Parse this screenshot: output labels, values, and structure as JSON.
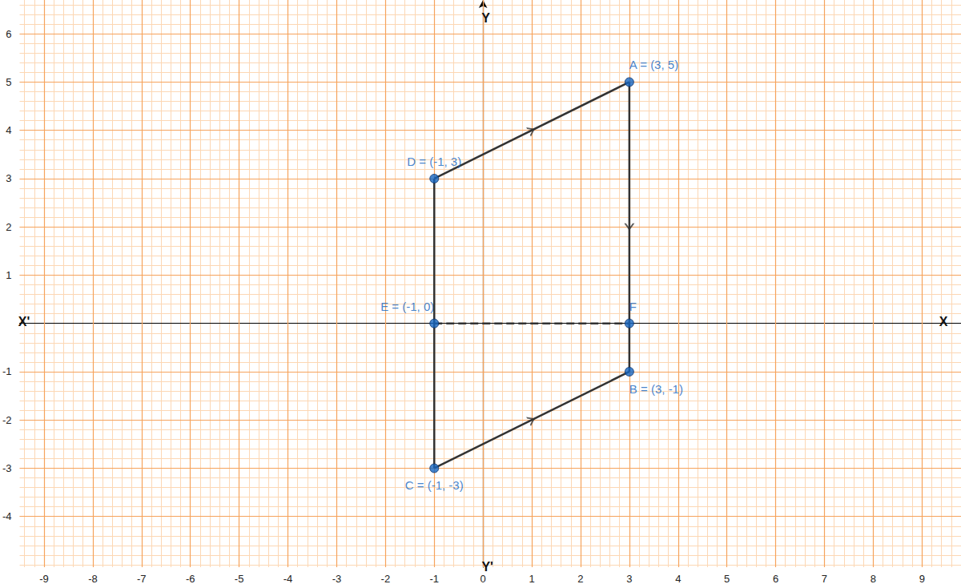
{
  "chart_data": {
    "type": "scatter",
    "x": [
      3,
      3,
      -1,
      -1,
      -1,
      3
    ],
    "values": [
      5,
      -1,
      -3,
      3,
      0,
      0
    ],
    "labels": [
      "A = (3, 5)",
      "B = (3, -1)",
      "C = (-1, -3)",
      "D = (-1, 3)",
      "E = (-1, 0)",
      "F"
    ],
    "color": "#1565c0",
    "segments": [
      {
        "x": [
          -1,
          3
        ],
        "values": [
          3,
          5
        ],
        "line_style": "solid",
        "marker": "arrow",
        "color": "#333333"
      },
      {
        "x": [
          3,
          3
        ],
        "values": [
          5,
          -1
        ],
        "line_style": "solid",
        "marker": "arrow",
        "color": "#333333"
      },
      {
        "x": [
          -1,
          3
        ],
        "values": [
          -3,
          -1
        ],
        "line_style": "solid",
        "marker": "arrow",
        "color": "#333333"
      },
      {
        "x": [
          -1,
          -1
        ],
        "values": [
          -3,
          3
        ],
        "line_style": "solid",
        "marker": "none",
        "color": "#333333"
      },
      {
        "x": [
          -1,
          3
        ],
        "values": [
          0,
          0
        ],
        "line_style": "dashed",
        "marker": "none",
        "color": "#333333"
      }
    ],
    "axis_labels": {
      "x": "X",
      "x_neg": "X'",
      "y": "Y",
      "y_neg": "Y'"
    },
    "xlim": [
      -9.5,
      9.8
    ],
    "ylim": [
      -5.05,
      6.7
    ],
    "xticks": [
      -9,
      -8,
      -7,
      -6,
      -5,
      -4,
      -3,
      -2,
      -1,
      0,
      1,
      2,
      3,
      4,
      5,
      6,
      7,
      8,
      9
    ],
    "yticks": [
      -4,
      -3,
      -2,
      -1,
      1,
      2,
      3,
      4,
      5,
      6
    ],
    "grid": true
  }
}
